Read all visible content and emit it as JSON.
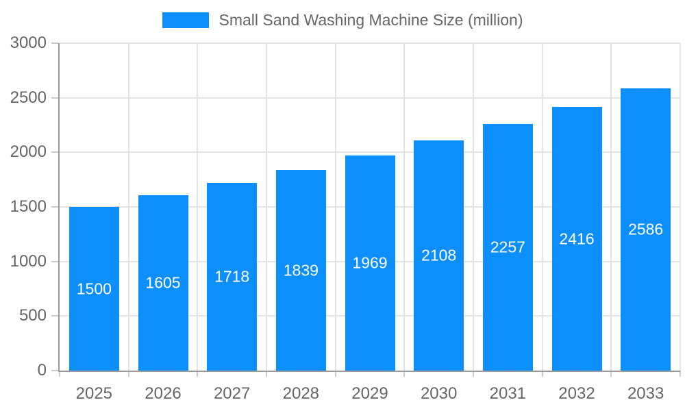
{
  "legend": {
    "label": "Small Sand Washing Machine Size (million)"
  },
  "colors": {
    "bar": "#0d8ffb",
    "bar_label": "#ffffff",
    "grid": "#e4e4e4",
    "axis": "#9a9a9a",
    "tick": "#c9c9c9",
    "text": "#666666",
    "background": "#ffffff"
  },
  "chart_data": {
    "type": "bar",
    "categories": [
      "2025",
      "2026",
      "2027",
      "2028",
      "2029",
      "2030",
      "2031",
      "2032",
      "2033"
    ],
    "series": [
      {
        "name": "Small Sand Washing Machine Size (million)",
        "values": [
          1500,
          1605,
          1718,
          1839,
          1969,
          2108,
          2257,
          2416,
          2586
        ]
      }
    ],
    "title": "",
    "xlabel": "",
    "ylabel": "",
    "ylim": [
      0,
      3000
    ],
    "yticks": [
      0,
      500,
      1000,
      1500,
      2000,
      2500,
      3000
    ],
    "grid": true,
    "legend_position": "top",
    "value_labels": "inside-center"
  }
}
